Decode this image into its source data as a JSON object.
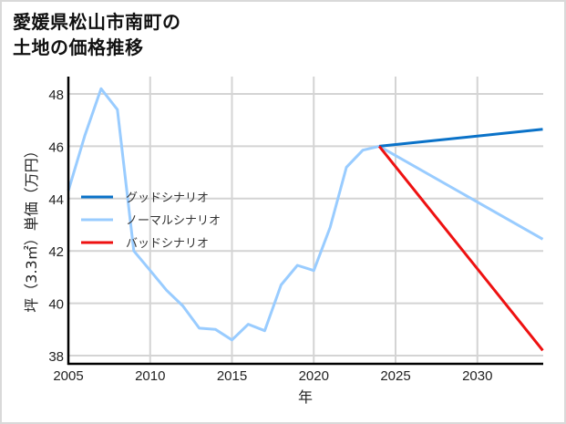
{
  "title": {
    "line1": "愛媛県松山市南町の",
    "line2": "土地の価格推移"
  },
  "chart_data": {
    "type": "line",
    "title": "愛媛県松山市南町の土地の価格推移",
    "xlabel": "年",
    "ylabel": "坪（3.3㎡）単価（万円）",
    "xlim": [
      2005,
      2034
    ],
    "ylim": [
      37.8,
      48.6
    ],
    "x_ticks": [
      2005,
      2010,
      2015,
      2020,
      2025,
      2030
    ],
    "y_ticks": [
      38,
      40,
      42,
      44,
      46,
      48
    ],
    "grid": true,
    "legend_position": "left-middle",
    "series": [
      {
        "name": "ノーマルシナリオ",
        "color": "#99ccff",
        "x": [
          2005,
          2006,
          2007,
          2008,
          2009,
          2010,
          2011,
          2012,
          2013,
          2014,
          2015,
          2016,
          2017,
          2018,
          2019,
          2020,
          2021,
          2022,
          2023,
          2024,
          2034
        ],
        "values": [
          44.3,
          46.4,
          48.2,
          47.4,
          42.0,
          41.25,
          40.5,
          39.9,
          39.05,
          39.0,
          38.6,
          39.2,
          38.95,
          40.7,
          41.45,
          41.25,
          42.9,
          45.2,
          45.85,
          46.0,
          42.45
        ]
      },
      {
        "name": "グッドシナリオ",
        "color": "#0a72c8",
        "x": [
          2024,
          2034
        ],
        "values": [
          46.0,
          46.65
        ]
      },
      {
        "name": "バッドシナリオ",
        "color": "#ee1111",
        "x": [
          2024,
          2034
        ],
        "values": [
          46.0,
          38.2
        ]
      }
    ]
  },
  "legend": [
    {
      "label": "グッドシナリオ",
      "color": "#0a72c8"
    },
    {
      "label": "ノーマルシナリオ",
      "color": "#99ccff"
    },
    {
      "label": "バッドシナリオ",
      "color": "#ee1111"
    }
  ]
}
